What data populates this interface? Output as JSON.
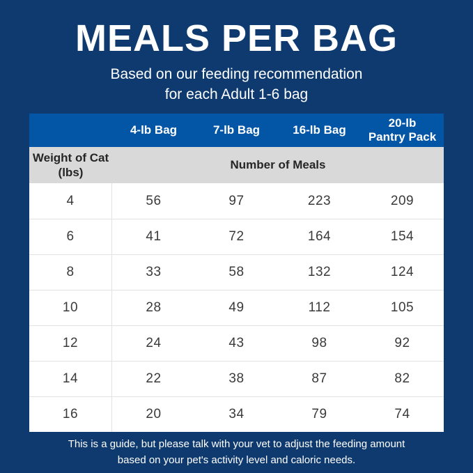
{
  "page": {
    "title": "MEALS PER BAG",
    "subtitle_line1": "Based on our feeding recommendation",
    "subtitle_line2": "for each Adult 1-6 bag",
    "footer_line1": "This is a guide, but please talk with your vet to adjust the feeding amount",
    "footer_line2": "based on your pet's activity level and caloric needs."
  },
  "table": {
    "column_headers": [
      "4-lb Bag",
      "7-lb Bag",
      "16-lb Bag",
      "20-lb\nPantry Pack"
    ],
    "row_header": "Weight of Cat\n(lbs)",
    "meals_header": "Number of Meals",
    "rows": [
      {
        "weight": "4",
        "values": [
          "56",
          "97",
          "223",
          "209"
        ]
      },
      {
        "weight": "6",
        "values": [
          "41",
          "72",
          "164",
          "154"
        ]
      },
      {
        "weight": "8",
        "values": [
          "33",
          "58",
          "132",
          "124"
        ]
      },
      {
        "weight": "10",
        "values": [
          "28",
          "49",
          "112",
          "105"
        ]
      },
      {
        "weight": "12",
        "values": [
          "24",
          "43",
          "98",
          "92"
        ]
      },
      {
        "weight": "14",
        "values": [
          "22",
          "38",
          "87",
          "82"
        ]
      },
      {
        "weight": "16",
        "values": [
          "20",
          "34",
          "79",
          "74"
        ]
      }
    ]
  },
  "colors": {
    "background_navy": "#0e3a70",
    "header_blue": "#0356a6",
    "subheader_gray": "#d9d9d9",
    "divider_gray": "#e2e2e2",
    "data_text": "#3a3a3a",
    "white": "#ffffff"
  },
  "chart_data": {
    "type": "table",
    "title": "MEALS PER BAG",
    "subtitle": "Based on our feeding recommendation for each Adult 1-6 bag",
    "columns": [
      "Weight of Cat (lbs)",
      "4-lb Bag",
      "7-lb Bag",
      "16-lb Bag",
      "20-lb Pantry Pack"
    ],
    "value_unit": "Number of Meals",
    "rows": [
      [
        4,
        56,
        97,
        223,
        209
      ],
      [
        6,
        41,
        72,
        164,
        154
      ],
      [
        8,
        33,
        58,
        132,
        124
      ],
      [
        10,
        28,
        49,
        112,
        105
      ],
      [
        12,
        24,
        43,
        98,
        92
      ],
      [
        14,
        22,
        38,
        87,
        82
      ],
      [
        16,
        20,
        34,
        79,
        74
      ]
    ],
    "note": "This is a guide, but please talk with your vet to adjust the feeding amount based on your pet's activity level and caloric needs."
  }
}
